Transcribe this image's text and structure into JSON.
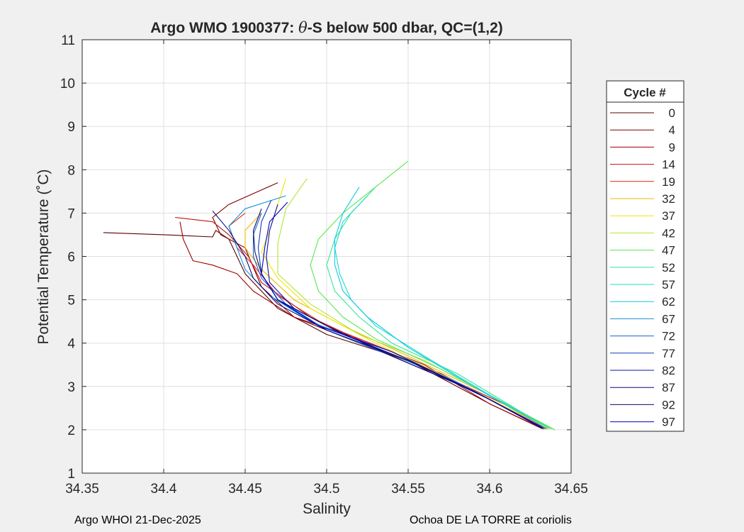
{
  "chart_data": {
    "type": "line",
    "title_parts": [
      "Argo WMO 1900377: ",
      "θ",
      "-S below 500 dbar,  QC=(1,2)"
    ],
    "xlabel": "Salinity",
    "ylabel": "Potential Temperature (˚C)",
    "xlim": [
      34.35,
      34.65
    ],
    "ylim": [
      1,
      11
    ],
    "xticks": [
      34.35,
      34.4,
      34.45,
      34.5,
      34.55,
      34.6,
      34.65
    ],
    "xtick_labels": [
      "34.35",
      "34.4",
      "34.45",
      "34.5",
      "34.55",
      "34.6",
      "34.65"
    ],
    "yticks": [
      1,
      2,
      3,
      4,
      5,
      6,
      7,
      8,
      9,
      10,
      11
    ],
    "ytick_labels": [
      "1",
      "2",
      "3",
      "4",
      "5",
      "6",
      "7",
      "8",
      "9",
      "10",
      "11"
    ],
    "grid": true,
    "legend": {
      "title": "Cycle #",
      "placement": "right-outside",
      "entries": [
        {
          "label": "0",
          "color": "#5a0000"
        },
        {
          "label": "4",
          "color": "#7c0000"
        },
        {
          "label": "9",
          "color": "#a00000"
        },
        {
          "label": "14",
          "color": "#c41212"
        },
        {
          "label": "19",
          "color": "#e02a10"
        },
        {
          "label": "32",
          "color": "#e8b800"
        },
        {
          "label": "37",
          "color": "#f2e600"
        },
        {
          "label": "42",
          "color": "#b4e632"
        },
        {
          "label": "47",
          "color": "#5ae650"
        },
        {
          "label": "52",
          "color": "#34e69a"
        },
        {
          "label": "57",
          "color": "#1edcc8"
        },
        {
          "label": "62",
          "color": "#10c8e8"
        },
        {
          "label": "67",
          "color": "#1490e0"
        },
        {
          "label": "72",
          "color": "#1464d2"
        },
        {
          "label": "77",
          "color": "#1438c0"
        },
        {
          "label": "82",
          "color": "#1010a8"
        },
        {
          "label": "87",
          "color": "#0a0a7a"
        },
        {
          "label": "92",
          "color": "#08086a"
        },
        {
          "label": "97",
          "color": "#0000c8"
        }
      ]
    },
    "series": [
      {
        "name": "0",
        "color": "#5a0000",
        "points": [
          [
            34.363,
            6.55
          ],
          [
            34.4,
            6.5
          ],
          [
            34.43,
            6.45
          ],
          [
            34.432,
            6.6
          ],
          [
            34.44,
            6.4
          ],
          [
            34.45,
            5.6
          ],
          [
            34.47,
            4.8
          ],
          [
            34.5,
            4.2
          ],
          [
            34.55,
            3.6
          ],
          [
            34.6,
            2.6
          ],
          [
            34.633,
            2.02
          ]
        ]
      },
      {
        "name": "4",
        "color": "#7c0000",
        "points": [
          [
            34.47,
            7.7
          ],
          [
            34.44,
            7.2
          ],
          [
            34.43,
            6.9
          ],
          [
            34.435,
            6.5
          ],
          [
            34.45,
            6.2
          ],
          [
            34.46,
            5.3
          ],
          [
            34.48,
            4.6
          ],
          [
            34.52,
            4.0
          ],
          [
            34.57,
            3.3
          ],
          [
            34.61,
            2.5
          ],
          [
            34.634,
            2.03
          ]
        ]
      },
      {
        "name": "9",
        "color": "#a00000",
        "points": [
          [
            34.41,
            6.8
          ],
          [
            34.412,
            6.4
          ],
          [
            34.418,
            5.9
          ],
          [
            34.43,
            5.8
          ],
          [
            34.445,
            5.6
          ],
          [
            34.455,
            5.2
          ],
          [
            34.48,
            4.6
          ],
          [
            34.52,
            4.1
          ],
          [
            34.56,
            3.5
          ],
          [
            34.6,
            2.6
          ],
          [
            34.632,
            2.03
          ]
        ]
      },
      {
        "name": "14",
        "color": "#c41212",
        "points": [
          [
            34.407,
            6.9
          ],
          [
            34.43,
            6.8
          ],
          [
            34.44,
            6.5
          ],
          [
            34.452,
            6.0
          ],
          [
            34.46,
            5.4
          ],
          [
            34.49,
            4.6
          ],
          [
            34.53,
            3.9
          ],
          [
            34.58,
            3.1
          ],
          [
            34.62,
            2.4
          ],
          [
            34.633,
            2.05
          ]
        ]
      },
      {
        "name": "19",
        "color": "#e02a10",
        "points": [
          [
            34.45,
            7.0
          ],
          [
            34.44,
            6.7
          ],
          [
            34.445,
            6.2
          ],
          [
            34.455,
            5.8
          ],
          [
            34.47,
            5.1
          ],
          [
            34.5,
            4.4
          ],
          [
            34.54,
            3.8
          ],
          [
            34.59,
            2.9
          ],
          [
            34.635,
            2.02
          ]
        ]
      },
      {
        "name": "32",
        "color": "#e8b800",
        "points": [
          [
            34.46,
            7.0
          ],
          [
            34.45,
            6.6
          ],
          [
            34.45,
            6.2
          ],
          [
            34.46,
            5.7
          ],
          [
            34.48,
            5.0
          ],
          [
            34.51,
            4.4
          ],
          [
            34.55,
            3.7
          ],
          [
            34.6,
            2.8
          ],
          [
            34.636,
            2.02
          ]
        ]
      },
      {
        "name": "37",
        "color": "#f2e600",
        "points": [
          [
            34.475,
            7.8
          ],
          [
            34.47,
            7.2
          ],
          [
            34.465,
            6.6
          ],
          [
            34.46,
            6.1
          ],
          [
            34.47,
            5.5
          ],
          [
            34.49,
            4.8
          ],
          [
            34.53,
            4.0
          ],
          [
            34.58,
            3.1
          ],
          [
            34.636,
            2.03
          ]
        ]
      },
      {
        "name": "42",
        "color": "#b4e632",
        "points": [
          [
            34.488,
            7.8
          ],
          [
            34.475,
            7.1
          ],
          [
            34.47,
            6.3
          ],
          [
            34.47,
            5.6
          ],
          [
            34.49,
            4.9
          ],
          [
            34.52,
            4.2
          ],
          [
            34.56,
            3.6
          ],
          [
            34.61,
            2.6
          ],
          [
            34.637,
            2.02
          ]
        ]
      },
      {
        "name": "47",
        "color": "#5ae650",
        "points": [
          [
            34.55,
            8.2
          ],
          [
            34.53,
            7.6
          ],
          [
            34.51,
            7.0
          ],
          [
            34.495,
            6.4
          ],
          [
            34.49,
            5.8
          ],
          [
            34.495,
            5.2
          ],
          [
            34.51,
            4.6
          ],
          [
            34.53,
            4.1
          ],
          [
            34.57,
            3.4
          ],
          [
            34.62,
            2.4
          ],
          [
            34.64,
            2.0
          ]
        ]
      },
      {
        "name": "52",
        "color": "#34e69a",
        "points": [
          [
            34.53,
            7.6
          ],
          [
            34.515,
            7.0
          ],
          [
            34.505,
            6.4
          ],
          [
            34.5,
            5.8
          ],
          [
            34.505,
            5.2
          ],
          [
            34.52,
            4.6
          ],
          [
            34.54,
            4.0
          ],
          [
            34.58,
            3.3
          ],
          [
            34.62,
            2.4
          ],
          [
            34.638,
            2.02
          ]
        ]
      },
      {
        "name": "57",
        "color": "#1edcc8",
        "points": [
          [
            34.525,
            7.4
          ],
          [
            34.51,
            6.8
          ],
          [
            34.505,
            6.2
          ],
          [
            34.508,
            5.6
          ],
          [
            34.515,
            5.0
          ],
          [
            34.53,
            4.4
          ],
          [
            34.56,
            3.7
          ],
          [
            34.6,
            2.8
          ],
          [
            34.636,
            2.05
          ]
        ]
      },
      {
        "name": "62",
        "color": "#10c8e8",
        "points": [
          [
            34.52,
            7.6
          ],
          [
            34.51,
            7.0
          ],
          [
            34.505,
            6.4
          ],
          [
            34.505,
            5.8
          ],
          [
            34.51,
            5.2
          ],
          [
            34.525,
            4.6
          ],
          [
            34.55,
            3.9
          ],
          [
            34.59,
            3.0
          ],
          [
            34.635,
            2.03
          ]
        ]
      },
      {
        "name": "67",
        "color": "#1490e0",
        "points": [
          [
            34.475,
            7.4
          ],
          [
            34.45,
            7.1
          ],
          [
            34.44,
            6.7
          ],
          [
            34.445,
            6.2
          ],
          [
            34.45,
            5.7
          ],
          [
            34.465,
            5.1
          ],
          [
            34.49,
            4.5
          ],
          [
            34.53,
            3.9
          ],
          [
            34.58,
            3.1
          ],
          [
            34.634,
            2.02
          ]
        ]
      },
      {
        "name": "72",
        "color": "#1464d2",
        "points": [
          [
            34.46,
            7.0
          ],
          [
            34.455,
            6.5
          ],
          [
            34.455,
            6.0
          ],
          [
            34.46,
            5.5
          ],
          [
            34.475,
            4.9
          ],
          [
            34.5,
            4.3
          ],
          [
            34.54,
            3.7
          ],
          [
            34.59,
            2.9
          ],
          [
            34.632,
            2.04
          ]
        ]
      },
      {
        "name": "77",
        "color": "#1438c0",
        "points": [
          [
            34.466,
            7.3
          ],
          [
            34.46,
            6.8
          ],
          [
            34.458,
            6.2
          ],
          [
            34.46,
            5.6
          ],
          [
            34.47,
            5.0
          ],
          [
            34.5,
            4.4
          ],
          [
            34.54,
            3.7
          ],
          [
            34.59,
            2.9
          ],
          [
            34.633,
            2.03
          ]
        ]
      },
      {
        "name": "82",
        "color": "#1010a8",
        "points": [
          [
            34.47,
            7.2
          ],
          [
            34.465,
            6.6
          ],
          [
            34.463,
            6.0
          ],
          [
            34.465,
            5.4
          ],
          [
            34.48,
            4.8
          ],
          [
            34.51,
            4.2
          ],
          [
            34.55,
            3.6
          ],
          [
            34.6,
            2.7
          ],
          [
            34.632,
            2.04
          ]
        ]
      },
      {
        "name": "87",
        "color": "#0a0a7a",
        "points": [
          [
            34.43,
            7.05
          ],
          [
            34.44,
            6.6
          ],
          [
            34.45,
            6.0
          ],
          [
            34.455,
            5.5
          ],
          [
            34.47,
            4.9
          ],
          [
            34.5,
            4.3
          ],
          [
            34.55,
            3.6
          ],
          [
            34.6,
            2.7
          ],
          [
            34.633,
            2.03
          ]
        ]
      },
      {
        "name": "92",
        "color": "#08086a",
        "points": [
          [
            34.46,
            7.1
          ],
          [
            34.455,
            6.6
          ],
          [
            34.456,
            6.1
          ],
          [
            34.46,
            5.6
          ],
          [
            34.47,
            5.0
          ],
          [
            34.5,
            4.4
          ],
          [
            34.54,
            3.7
          ],
          [
            34.59,
            2.9
          ],
          [
            34.632,
            2.05
          ]
        ]
      },
      {
        "name": "97",
        "color": "#0000c8",
        "points": [
          [
            34.476,
            7.25
          ],
          [
            34.465,
            6.8
          ],
          [
            34.462,
            6.2
          ],
          [
            34.46,
            5.6
          ],
          [
            34.47,
            5.0
          ],
          [
            34.495,
            4.4
          ],
          [
            34.54,
            3.8
          ],
          [
            34.59,
            2.9
          ],
          [
            34.632,
            2.06
          ]
        ]
      }
    ]
  },
  "footer": {
    "left": "Argo WHOI 21-Dec-2025",
    "right": "Ochoa DE LA TORRE at coriolis"
  }
}
